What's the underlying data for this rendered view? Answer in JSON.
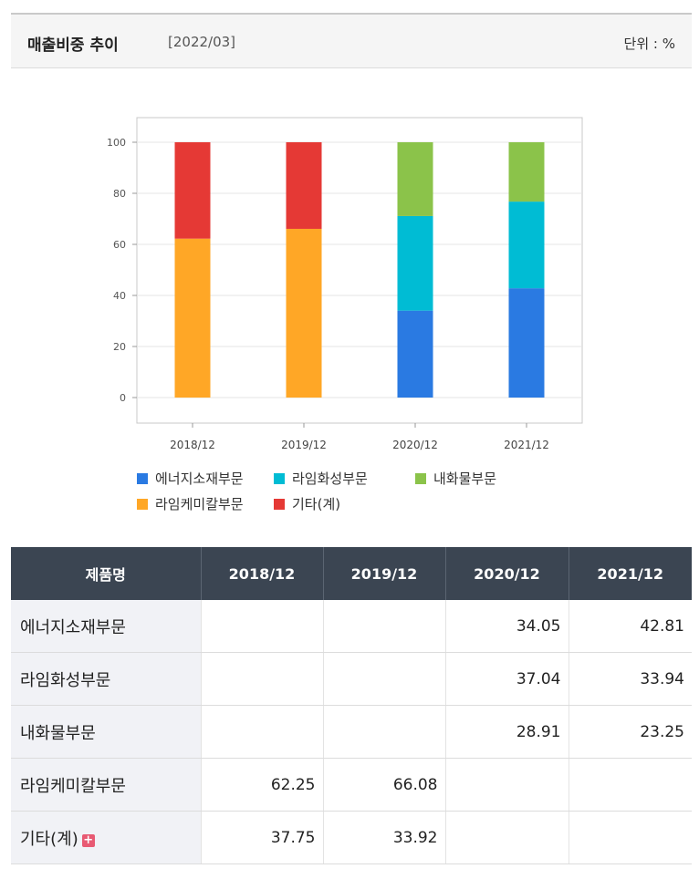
{
  "header": {
    "title": "매출비중 추이",
    "date": "[2022/03]",
    "unit": "단위 : %"
  },
  "chart_data": {
    "type": "bar",
    "stacked": true,
    "categories": [
      "2018/12",
      "2019/12",
      "2020/12",
      "2021/12"
    ],
    "ylim": [
      0,
      100
    ],
    "yticks": [
      0,
      20,
      40,
      60,
      80,
      100
    ],
    "grid": true,
    "legend_position": "bottom",
    "series": [
      {
        "name": "에너지소재부문",
        "color": "#2a7ae2",
        "values": [
          null,
          null,
          34.05,
          42.81
        ]
      },
      {
        "name": "라임화성부문",
        "color": "#00bcd4",
        "values": [
          null,
          null,
          37.04,
          33.94
        ]
      },
      {
        "name": "내화물부문",
        "color": "#8bc34a",
        "values": [
          null,
          null,
          28.91,
          23.25
        ]
      },
      {
        "name": "라임케미칼부문",
        "color": "#ffa726",
        "values": [
          62.25,
          66.08,
          null,
          null
        ]
      },
      {
        "name": "기타(계)",
        "color": "#e53935",
        "values": [
          37.75,
          33.92,
          null,
          null
        ]
      }
    ]
  },
  "table": {
    "columns": [
      "제품명",
      "2018/12",
      "2019/12",
      "2020/12",
      "2021/12"
    ],
    "rows": [
      {
        "name": "에너지소재부문",
        "values": [
          "",
          "",
          "34.05",
          "42.81"
        ]
      },
      {
        "name": "라임화성부문",
        "values": [
          "",
          "",
          "37.04",
          "33.94"
        ]
      },
      {
        "name": "내화물부문",
        "values": [
          "",
          "",
          "28.91",
          "23.25"
        ]
      },
      {
        "name": "라임케미칼부문",
        "values": [
          "62.25",
          "66.08",
          "",
          ""
        ]
      },
      {
        "name": "기타(계)",
        "values": [
          "37.75",
          "33.92",
          "",
          ""
        ],
        "expand_icon": "plus-icon"
      }
    ]
  }
}
